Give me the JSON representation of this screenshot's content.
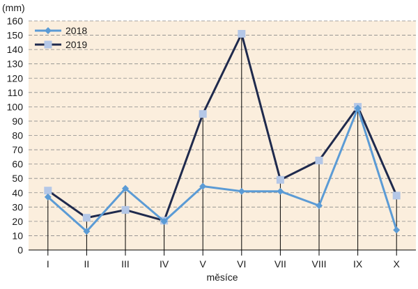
{
  "chart_data": {
    "type": "line",
    "unit_label": "(mm)",
    "xlabel": "měsíce",
    "categories": [
      "I",
      "II",
      "III",
      "IV",
      "V",
      "VI",
      "VII",
      "VIII",
      "IX",
      "X"
    ],
    "ylim": [
      0,
      160
    ],
    "ytick_step": 10,
    "legend_position": "top-left",
    "grid": true,
    "background_color": "#fbeedd",
    "series": [
      {
        "name": "2018",
        "marker": "diamond",
        "line_color": "#5b9bd5",
        "marker_color": "#5b9bd5",
        "values": [
          37,
          13,
          43,
          20,
          44.5,
          41,
          41,
          31,
          99,
          14
        ]
      },
      {
        "name": "2019",
        "marker": "square",
        "line_color": "#1f2a4d",
        "marker_color": "#b4c7e7",
        "values": [
          41.5,
          22.5,
          28,
          20.5,
          95,
          151,
          49,
          62.5,
          100,
          38
        ]
      }
    ]
  }
}
